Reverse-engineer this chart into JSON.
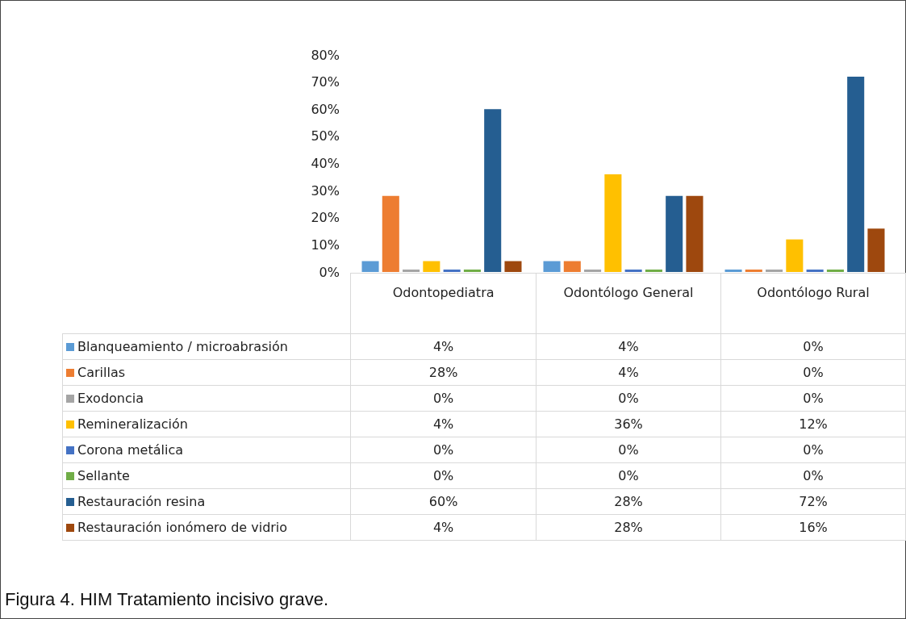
{
  "chart_data": {
    "type": "bar",
    "categories": [
      "Odontopediatra",
      "Odontólogo General",
      "Odontólogo Rural"
    ],
    "series": [
      {
        "name": "Blanqueamiento / microabrasión",
        "color": "#5b9bd5",
        "values": [
          4,
          4,
          0
        ],
        "value_labels": [
          "4%",
          "4%",
          "0%"
        ]
      },
      {
        "name": "Carillas",
        "color": "#ed7d31",
        "values": [
          28,
          4,
          0
        ],
        "value_labels": [
          "28%",
          "4%",
          "0%"
        ]
      },
      {
        "name": "Exodoncia",
        "color": "#a5a5a5",
        "values": [
          0,
          0,
          0
        ],
        "value_labels": [
          "0%",
          "0%",
          "0%"
        ]
      },
      {
        "name": "Remineralización",
        "color": "#ffc000",
        "values": [
          4,
          36,
          12
        ],
        "value_labels": [
          "4%",
          "36%",
          "12%"
        ]
      },
      {
        "name": "Corona metálica",
        "color": "#4472c4",
        "values": [
          0,
          0,
          0
        ],
        "value_labels": [
          "0%",
          "0%",
          "0%"
        ]
      },
      {
        "name": "Sellante",
        "color": "#70ad47",
        "values": [
          0,
          0,
          0
        ],
        "value_labels": [
          "0%",
          "0%",
          "0%"
        ]
      },
      {
        "name": "Restauración resina",
        "color": "#255e91",
        "values": [
          60,
          28,
          72
        ],
        "value_labels": [
          "60%",
          "28%",
          "72%"
        ]
      },
      {
        "name": "Restauración ionómero de vidrio",
        "color": "#9e480e",
        "values": [
          4,
          28,
          16
        ],
        "value_labels": [
          "4%",
          "28%",
          "16%"
        ]
      }
    ],
    "ylim": [
      0,
      80
    ],
    "yticks": [
      {
        "value": 0,
        "label": "0%"
      },
      {
        "value": 10,
        "label": "10%"
      },
      {
        "value": 20,
        "label": "20%"
      },
      {
        "value": 30,
        "label": "30%"
      },
      {
        "value": 40,
        "label": "40%"
      },
      {
        "value": 50,
        "label": "50%"
      },
      {
        "value": 60,
        "label": "60%"
      },
      {
        "value": 70,
        "label": "70%"
      },
      {
        "value": 80,
        "label": "80%"
      }
    ],
    "grid": false,
    "legend": "bottom",
    "annotations": [
      "Figura 4.  HIM Tratamiento incisivo grave."
    ]
  }
}
